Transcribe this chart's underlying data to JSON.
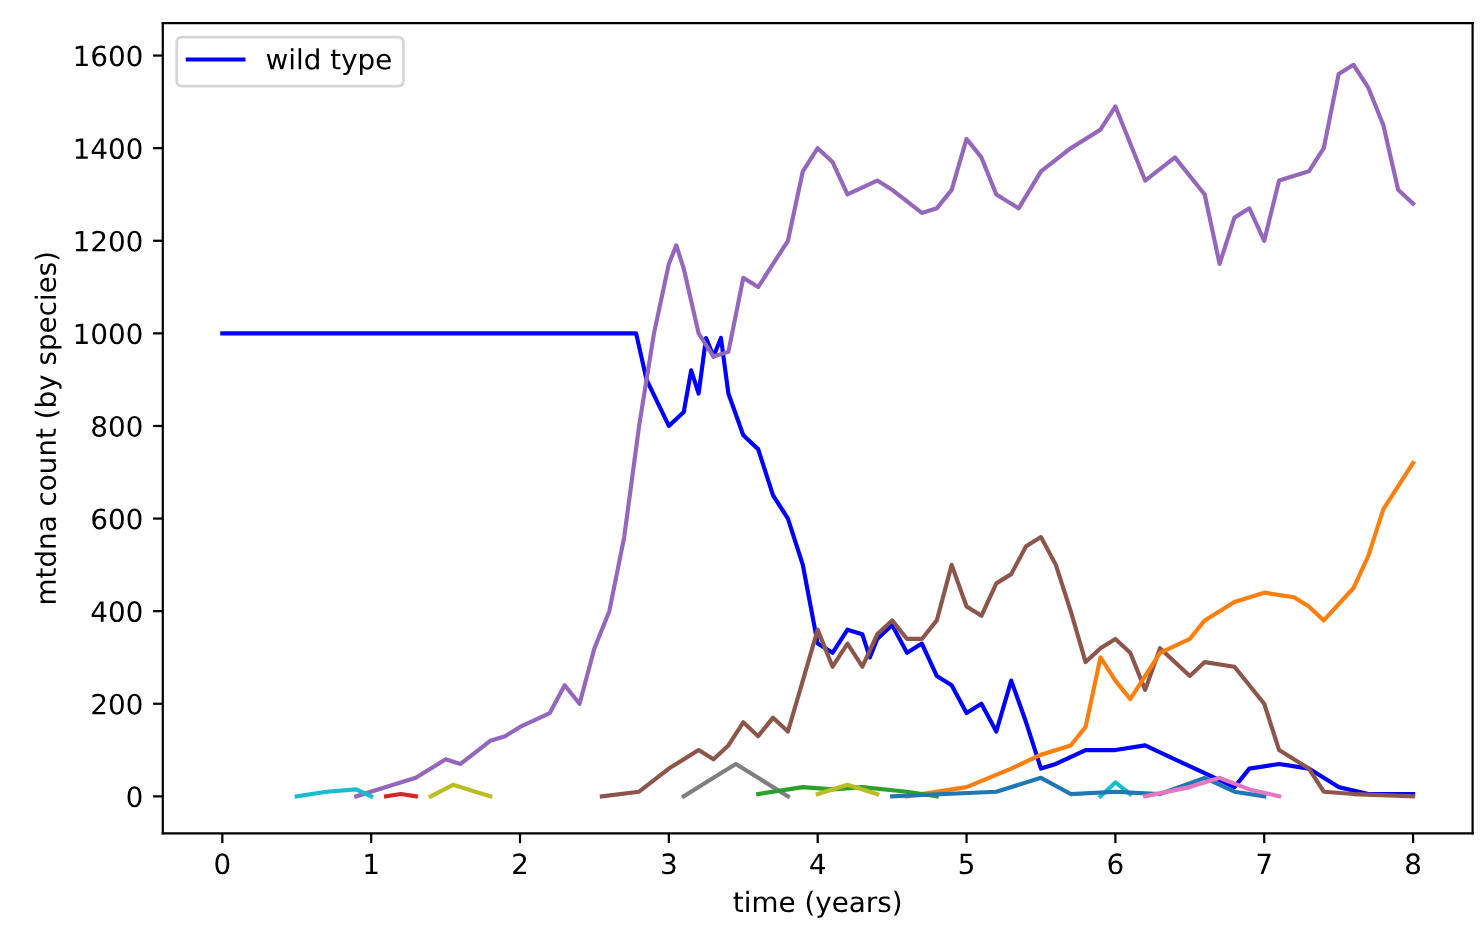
{
  "chart_data": {
    "type": "line",
    "xlabel": "time (years)",
    "ylabel": "mtdna count (by species)",
    "xlim": [
      -0.4,
      8.4
    ],
    "ylim": [
      -80,
      1670
    ],
    "xticks": [
      0,
      1,
      2,
      3,
      4,
      5,
      6,
      7,
      8
    ],
    "yticks": [
      0,
      200,
      400,
      600,
      800,
      1000,
      1200,
      1400,
      1600
    ],
    "legend": "top left",
    "grid": false,
    "marker": "none",
    "line_style": "solid",
    "series": [
      {
        "name": "wild type",
        "color": "#0000ff",
        "x": [
          0,
          0.5,
          1,
          1.5,
          2,
          2.5,
          2.78,
          2.85,
          3.0,
          3.1,
          3.15,
          3.2,
          3.25,
          3.3,
          3.35,
          3.4,
          3.5,
          3.6,
          3.7,
          3.8,
          3.9,
          4.0,
          4.1,
          4.2,
          4.3,
          4.35,
          4.4,
          4.5,
          4.6,
          4.7,
          4.8,
          4.9,
          5.0,
          5.1,
          5.2,
          5.3,
          5.4,
          5.5,
          5.6,
          5.8,
          6.0,
          6.2,
          6.4,
          6.6,
          6.8,
          6.9,
          7.1,
          7.3,
          7.5,
          7.7,
          8.0
        ],
        "values": [
          1000,
          1000,
          1000,
          1000,
          1000,
          1000,
          1000,
          900,
          800,
          830,
          920,
          870,
          990,
          950,
          990,
          870,
          780,
          750,
          650,
          600,
          500,
          330,
          310,
          360,
          350,
          300,
          340,
          370,
          310,
          330,
          260,
          240,
          180,
          200,
          140,
          250,
          160,
          60,
          70,
          100,
          100,
          110,
          80,
          50,
          20,
          60,
          70,
          60,
          20,
          5,
          5
        ]
      },
      {
        "color": "#9467bd",
        "x": [
          0.9,
          1.1,
          1.3,
          1.5,
          1.6,
          1.8,
          1.9,
          2.0,
          2.2,
          2.3,
          2.4,
          2.5,
          2.6,
          2.7,
          2.8,
          2.9,
          3.0,
          3.05,
          3.1,
          3.2,
          3.3,
          3.4,
          3.5,
          3.6,
          3.7,
          3.8,
          3.9,
          4.0,
          4.1,
          4.2,
          4.4,
          4.5,
          4.7,
          4.8,
          4.9,
          5.0,
          5.1,
          5.2,
          5.35,
          5.5,
          5.7,
          5.9,
          6.0,
          6.2,
          6.4,
          6.6,
          6.7,
          6.8,
          6.9,
          7.0,
          7.1,
          7.3,
          7.4,
          7.5,
          7.6,
          7.7,
          7.8,
          7.9,
          8.0
        ],
        "values": [
          0,
          20,
          40,
          80,
          70,
          120,
          130,
          150,
          180,
          240,
          200,
          320,
          400,
          560,
          800,
          1000,
          1150,
          1190,
          1140,
          1000,
          950,
          960,
          1120,
          1100,
          1150,
          1200,
          1350,
          1400,
          1370,
          1300,
          1330,
          1310,
          1260,
          1270,
          1310,
          1420,
          1380,
          1300,
          1270,
          1350,
          1400,
          1440,
          1490,
          1330,
          1380,
          1300,
          1150,
          1250,
          1270,
          1200,
          1330,
          1350,
          1400,
          1560,
          1580,
          1530,
          1450,
          1310,
          1280
        ]
      },
      {
        "color": "#8c564b",
        "x": [
          2.55,
          2.8,
          3.0,
          3.2,
          3.3,
          3.4,
          3.5,
          3.6,
          3.7,
          3.8,
          3.9,
          4.0,
          4.1,
          4.2,
          4.3,
          4.4,
          4.5,
          4.6,
          4.7,
          4.8,
          4.9,
          5.0,
          5.1,
          5.2,
          5.3,
          5.4,
          5.5,
          5.6,
          5.7,
          5.8,
          5.9,
          6.0,
          6.1,
          6.2,
          6.3,
          6.5,
          6.6,
          6.8,
          7.0,
          7.1,
          7.3,
          7.4,
          7.6,
          8.0
        ],
        "values": [
          0,
          10,
          60,
          100,
          80,
          110,
          160,
          130,
          170,
          140,
          250,
          360,
          280,
          330,
          280,
          350,
          380,
          340,
          340,
          380,
          500,
          410,
          390,
          460,
          480,
          540,
          560,
          500,
          400,
          290,
          320,
          340,
          310,
          230,
          320,
          260,
          290,
          280,
          200,
          100,
          60,
          10,
          5,
          0
        ]
      },
      {
        "color": "#ff7f0e",
        "x": [
          4.6,
          5.0,
          5.3,
          5.5,
          5.7,
          5.8,
          5.9,
          6.0,
          6.1,
          6.3,
          6.5,
          6.6,
          6.8,
          7.0,
          7.2,
          7.3,
          7.4,
          7.6,
          7.7,
          7.8,
          8.0
        ],
        "values": [
          0,
          20,
          60,
          90,
          110,
          150,
          300,
          250,
          210,
          310,
          340,
          380,
          420,
          440,
          430,
          410,
          380,
          450,
          520,
          620,
          720
        ]
      },
      {
        "color": "#7f7f7f",
        "x": [
          3.1,
          3.3,
          3.45,
          3.6,
          3.8
        ],
        "values": [
          0,
          40,
          70,
          40,
          0
        ]
      },
      {
        "color": "#2ca02c",
        "x": [
          3.6,
          3.9,
          4.1,
          4.3,
          4.6,
          4.8
        ],
        "values": [
          5,
          20,
          15,
          20,
          10,
          0
        ]
      },
      {
        "color": "#bcbd22",
        "x": [
          1.4,
          1.55,
          1.7,
          1.8,
          null,
          4.0,
          4.2,
          4.4
        ],
        "values": [
          0,
          25,
          10,
          0,
          null,
          5,
          25,
          5
        ]
      },
      {
        "color": "#17becf",
        "x": [
          0.5,
          0.7,
          0.9,
          1.0,
          null,
          5.9,
          6.0,
          6.1
        ],
        "values": [
          0,
          10,
          15,
          0,
          null,
          0,
          30,
          5
        ]
      },
      {
        "color": "#1f77b4",
        "x": [
          4.5,
          5.2,
          5.5,
          5.7,
          6.0,
          6.3,
          6.6,
          6.8,
          7.0
        ],
        "values": [
          0,
          10,
          40,
          5,
          10,
          5,
          40,
          10,
          0
        ]
      },
      {
        "color": "#e377c2",
        "x": [
          6.2,
          6.5,
          6.7,
          6.9,
          7.1
        ],
        "values": [
          0,
          20,
          40,
          15,
          0
        ]
      },
      {
        "color": "#d62728",
        "x": [
          1.1,
          1.2,
          1.3
        ],
        "values": [
          0,
          5,
          0
        ]
      }
    ]
  }
}
